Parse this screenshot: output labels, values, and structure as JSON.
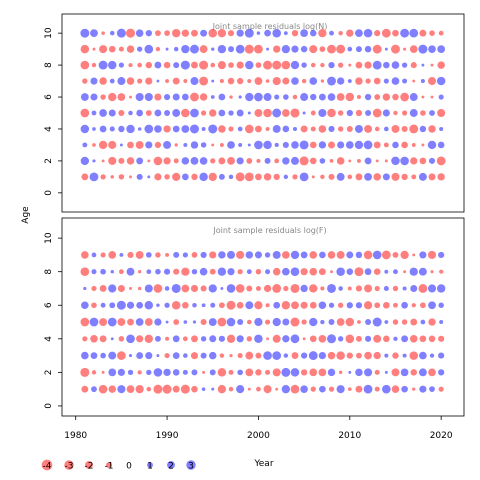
{
  "chart_data": {
    "type": "scatter",
    "xlabel": "Year",
    "ylabel": "Age",
    "xlim": [
      1978.5,
      2022.5
    ],
    "xticks": [
      1980,
      1990,
      2000,
      2010,
      2020
    ],
    "ages": [
      0,
      1,
      2,
      3,
      4,
      5,
      6,
      7,
      8,
      9,
      10
    ],
    "years_first": 1981,
    "years_last": 2020,
    "colors": {
      "negative": "#ff0000",
      "positive": "#0000ff",
      "opacity": 0.5
    },
    "panels": [
      {
        "title": "Joint sample residuals log(N)",
        "ylim": [
          -1.2,
          11.2
        ],
        "yticks": [
          0,
          2,
          4,
          6,
          8,
          10
        ],
        "ages": [
          1,
          2,
          3,
          4,
          5,
          6,
          7,
          8,
          9,
          10
        ],
        "seed": 7
      },
      {
        "title": "Joint sample residuals log(F)",
        "ylim": [
          -0.6,
          11.2
        ],
        "yticks": [
          0,
          2,
          4,
          6,
          8,
          10
        ],
        "ages": [
          1,
          2,
          3,
          4,
          5,
          6,
          7,
          8,
          9
        ],
        "seed": 19
      }
    ],
    "legend": {
      "values": [
        -4,
        -3,
        -2,
        -1,
        0,
        1,
        2,
        3
      ],
      "labels": [
        "-4",
        "-3",
        "-2",
        "-1",
        "0",
        "1",
        "2",
        "3"
      ]
    }
  }
}
